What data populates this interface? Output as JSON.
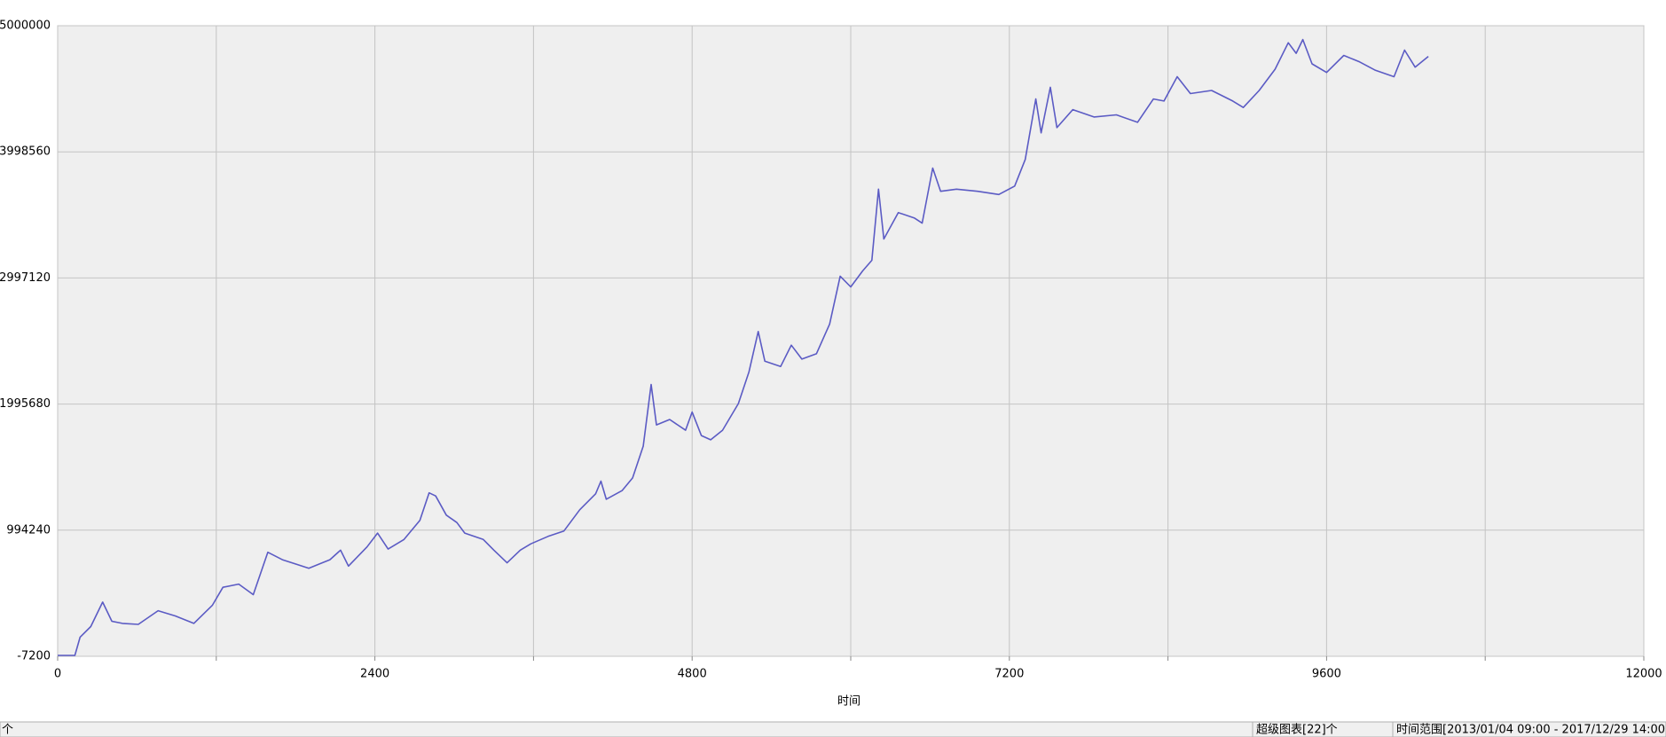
{
  "chart_data": {
    "type": "line",
    "x_label": "时间",
    "color": "#5b5bc4",
    "grid": true,
    "xlim": [
      0,
      12000
    ],
    "xticks": [
      0,
      2400,
      4800,
      7200,
      9600,
      12000
    ],
    "x_minor_grid": [
      1200,
      3600,
      6000,
      8400,
      10800
    ],
    "ylim": [
      -7200,
      5000000
    ],
    "yticks": [
      -7200,
      994240,
      1995680,
      2997120,
      3998560,
      5000000
    ],
    "x": [
      0,
      130,
      170,
      250,
      340,
      410,
      490,
      610,
      760,
      890,
      1030,
      1170,
      1250,
      1370,
      1480,
      1590,
      1700,
      1900,
      2060,
      2140,
      2200,
      2340,
      2420,
      2500,
      2620,
      2740,
      2810,
      2860,
      2940,
      3020,
      3080,
      3220,
      3300,
      3400,
      3500,
      3580,
      3710,
      3830,
      3950,
      4070,
      4110,
      4150,
      4270,
      4350,
      4430,
      4490,
      4530,
      4630,
      4750,
      4800,
      4870,
      4940,
      5030,
      5150,
      5230,
      5300,
      5350,
      5470,
      5550,
      5630,
      5740,
      5840,
      5920,
      6000,
      6090,
      6160,
      6210,
      6250,
      6360,
      6480,
      6540,
      6620,
      6680,
      6800,
      6960,
      7120,
      7240,
      7320,
      7400,
      7440,
      7510,
      7560,
      7680,
      7840,
      8010,
      8170,
      8290,
      8370,
      8470,
      8570,
      8730,
      8890,
      8970,
      9090,
      9210,
      9310,
      9370,
      9420,
      9490,
      9600,
      9730,
      9850,
      9970,
      10110,
      10190,
      10270,
      10370
    ],
    "values": [
      0,
      0,
      145000,
      229000,
      423000,
      271000,
      254000,
      246000,
      355000,
      313000,
      254000,
      397000,
      541000,
      566000,
      482000,
      819000,
      760000,
      692000,
      760000,
      836000,
      709000,
      861000,
      971000,
      844000,
      920000,
      1072000,
      1291000,
      1266000,
      1114000,
      1055000,
      971000,
      920000,
      836000,
      735000,
      836000,
      886000,
      945000,
      988000,
      1156000,
      1283000,
      1384000,
      1240000,
      1308000,
      1409000,
      1662000,
      2151000,
      1830000,
      1873000,
      1788000,
      1932000,
      1746000,
      1712000,
      1788000,
      1999000,
      2252000,
      2572000,
      2336000,
      2294000,
      2463000,
      2353000,
      2395000,
      2631000,
      3011000,
      2926000,
      3053000,
      3137000,
      3702000,
      3306000,
      3516000,
      3474000,
      3432000,
      3870000,
      3685000,
      3702000,
      3685000,
      3660000,
      3727000,
      3938000,
      4418000,
      4149000,
      4511000,
      4191000,
      4334000,
      4275000,
      4292000,
      4233000,
      4418000,
      4402000,
      4595000,
      4461000,
      4486000,
      4402000,
      4351000,
      4486000,
      4654000,
      4865000,
      4781000,
      4890000,
      4697000,
      4629000,
      4764000,
      4713000,
      4646000,
      4595000,
      4806000,
      4671000,
      4756000
    ]
  },
  "status_bar": [
    "个",
    "超级图表[22]个",
    "时间范围[2013/01/04 09:00 - 2017/12/29 14:00]"
  ]
}
